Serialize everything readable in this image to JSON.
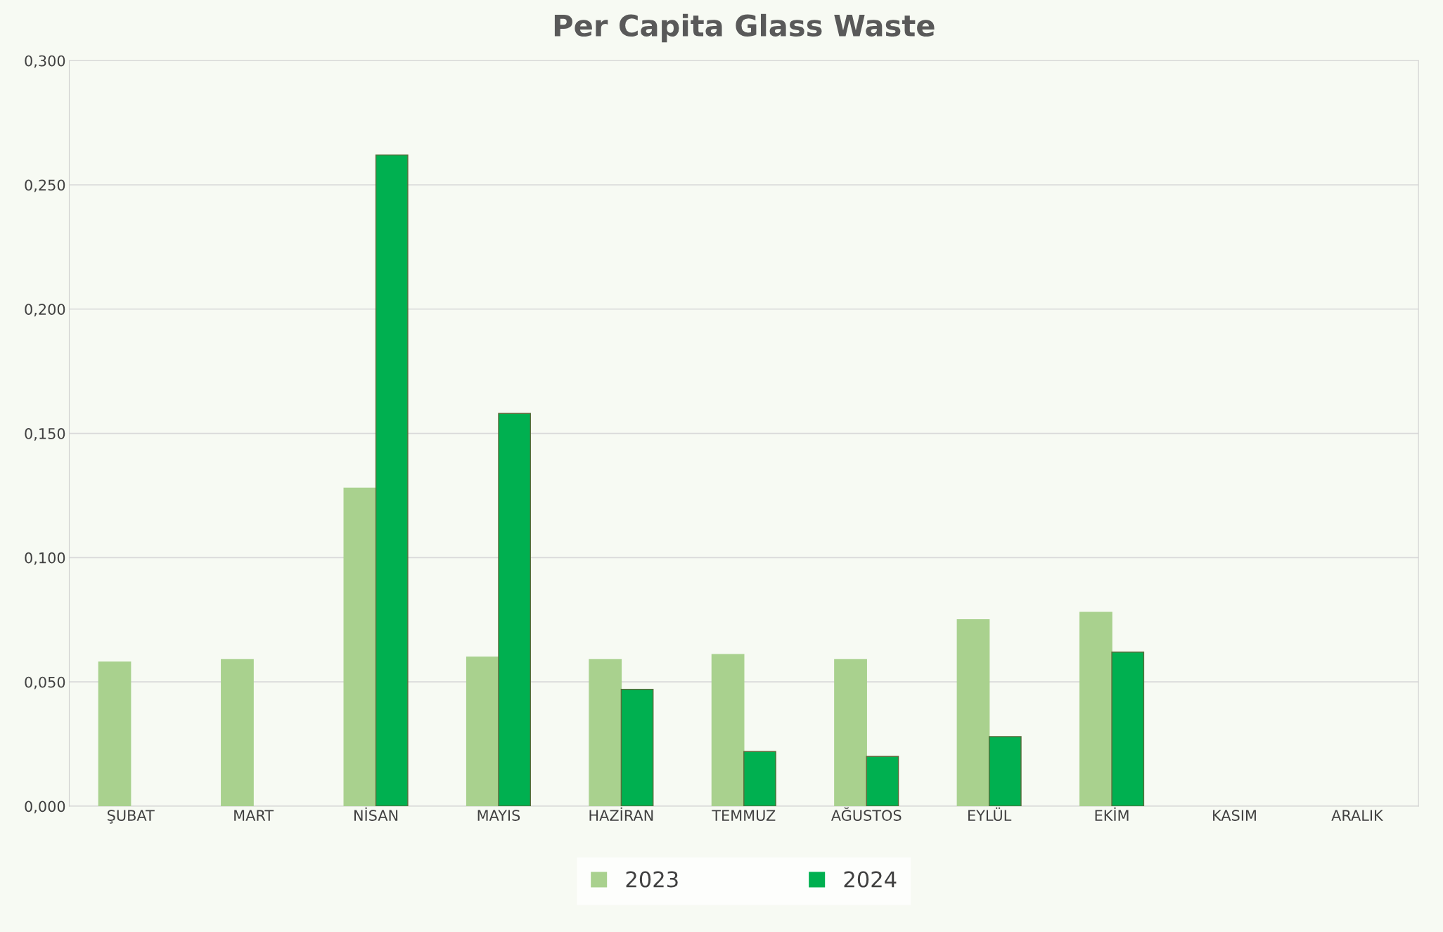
{
  "chart_data": {
    "type": "bar",
    "title": "Per Capita Glass Waste",
    "categories": [
      "ŞUBAT",
      "MART",
      "NİSAN",
      "MAYIS",
      "HAZİRAN",
      "TEMMUZ",
      "AĞUSTOS",
      "EYLÜL",
      "EKİM",
      "KASIM",
      "ARALIK"
    ],
    "series": [
      {
        "name": "2023",
        "color": "#a9d18e",
        "values": [
          0.058,
          0.059,
          0.128,
          0.06,
          0.059,
          0.061,
          0.059,
          0.075,
          0.078,
          null,
          null
        ]
      },
      {
        "name": "2024",
        "color": "#00b050",
        "values": [
          null,
          null,
          0.262,
          0.158,
          0.047,
          0.022,
          0.02,
          0.028,
          0.062,
          null,
          null
        ]
      }
    ],
    "ylim": [
      0,
      0.3
    ],
    "yticks": [
      {
        "value": 0,
        "label": "0,000"
      },
      {
        "value": 0.05,
        "label": "0,050"
      },
      {
        "value": 0.1,
        "label": "0,100"
      },
      {
        "value": 0.15,
        "label": "0,150"
      },
      {
        "value": 0.2,
        "label": "0,200"
      },
      {
        "value": 0.25,
        "label": "0,250"
      },
      {
        "value": 0.3,
        "label": "0,300"
      }
    ],
    "grid": "y",
    "legend": "bottom"
  }
}
